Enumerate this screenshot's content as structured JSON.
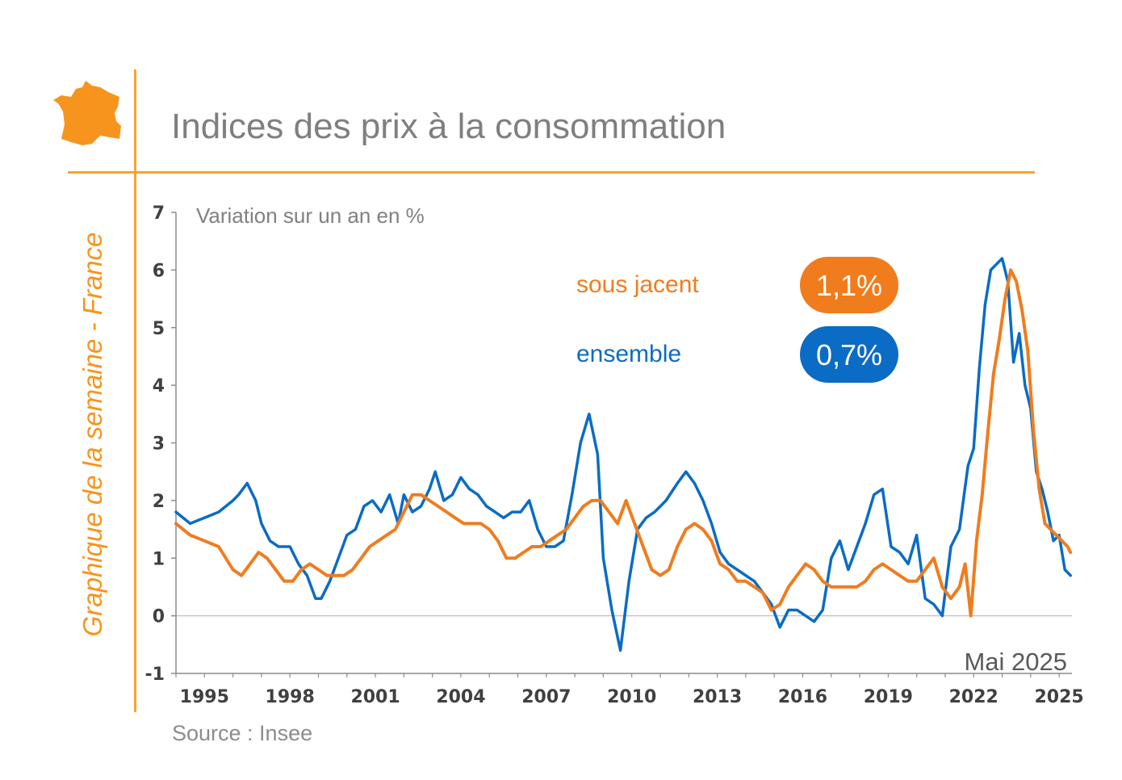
{
  "header": {
    "title": "Indices des prix à la consommation",
    "side_label": "Graphique de la semaine - France"
  },
  "footer": {
    "source": "Source : Insee"
  },
  "chart_data": {
    "type": "line",
    "ylabel": "Variation sur un an en %",
    "ylim": [
      -1,
      7
    ],
    "yticks": [
      -1,
      0,
      1,
      2,
      3,
      4,
      5,
      6,
      7
    ],
    "xlim": [
      1994.0,
      2025.45
    ],
    "xticks": [
      1995,
      1998,
      2001,
      2004,
      2007,
      2010,
      2013,
      2016,
      2019,
      2022,
      2025
    ],
    "annotation": "Mai 2025",
    "colors": {
      "sous_jacent": "#f07c1e",
      "ensemble": "#0a6cc4"
    },
    "series": [
      {
        "name": "ensemble",
        "latest": "0,7%",
        "x": [
          1994.0,
          1994.5,
          1995.0,
          1995.5,
          1996.0,
          1996.2,
          1996.5,
          1996.8,
          1997.0,
          1997.3,
          1997.6,
          1998.0,
          1998.3,
          1998.6,
          1998.9,
          1999.1,
          1999.4,
          1999.7,
          2000.0,
          2000.3,
          2000.6,
          2000.9,
          2001.2,
          2001.5,
          2001.8,
          2002.0,
          2002.3,
          2002.6,
          2002.9,
          2003.1,
          2003.4,
          2003.7,
          2004.0,
          2004.3,
          2004.6,
          2004.9,
          2005.2,
          2005.5,
          2005.8,
          2006.1,
          2006.4,
          2006.7,
          2007.0,
          2007.3,
          2007.6,
          2007.9,
          2008.2,
          2008.5,
          2008.8,
          2009.0,
          2009.3,
          2009.6,
          2009.9,
          2010.2,
          2010.5,
          2010.8,
          2011.2,
          2011.6,
          2011.9,
          2012.2,
          2012.5,
          2012.8,
          2013.1,
          2013.4,
          2013.7,
          2014.0,
          2014.3,
          2014.6,
          2014.9,
          2015.2,
          2015.5,
          2015.8,
          2016.1,
          2016.4,
          2016.7,
          2017.0,
          2017.3,
          2017.6,
          2017.9,
          2018.2,
          2018.5,
          2018.8,
          2019.1,
          2019.4,
          2019.7,
          2020.0,
          2020.3,
          2020.6,
          2020.9,
          2021.2,
          2021.5,
          2021.8,
          2022.0,
          2022.2,
          2022.4,
          2022.6,
          2022.8,
          2023.0,
          2023.2,
          2023.4,
          2023.6,
          2023.8,
          2024.0,
          2024.2,
          2024.4,
          2024.6,
          2024.8,
          2025.0,
          2025.2,
          2025.4
        ],
        "y": [
          1.8,
          1.6,
          1.7,
          1.8,
          2.0,
          2.1,
          2.3,
          2.0,
          1.6,
          1.3,
          1.2,
          1.2,
          0.9,
          0.7,
          0.3,
          0.3,
          0.6,
          1.0,
          1.4,
          1.5,
          1.9,
          2.0,
          1.8,
          2.1,
          1.6,
          2.1,
          1.8,
          1.9,
          2.2,
          2.5,
          2.0,
          2.1,
          2.4,
          2.2,
          2.1,
          1.9,
          1.8,
          1.7,
          1.8,
          1.8,
          2.0,
          1.5,
          1.2,
          1.2,
          1.3,
          2.1,
          3.0,
          3.5,
          2.8,
          1.0,
          0.1,
          -0.6,
          0.6,
          1.5,
          1.7,
          1.8,
          2.0,
          2.3,
          2.5,
          2.3,
          2.0,
          1.6,
          1.1,
          0.9,
          0.8,
          0.7,
          0.6,
          0.4,
          0.2,
          -0.2,
          0.1,
          0.1,
          0.0,
          -0.1,
          0.1,
          1.0,
          1.3,
          0.8,
          1.2,
          1.6,
          2.1,
          2.2,
          1.2,
          1.1,
          0.9,
          1.4,
          0.3,
          0.2,
          0.0,
          1.2,
          1.5,
          2.6,
          2.9,
          4.3,
          5.4,
          6.0,
          6.1,
          6.2,
          5.8,
          4.4,
          4.9,
          4.0,
          3.6,
          2.5,
          2.2,
          1.8,
          1.3,
          1.4,
          0.8,
          0.7
        ]
      },
      {
        "name": "sous jacent",
        "latest": "1,1%",
        "x": [
          1994.0,
          1994.5,
          1995.0,
          1995.5,
          1996.0,
          1996.3,
          1996.6,
          1996.9,
          1997.2,
          1997.5,
          1997.8,
          1998.1,
          1998.4,
          1998.7,
          1999.0,
          1999.3,
          1999.6,
          1999.9,
          2000.2,
          2000.5,
          2000.8,
          2001.1,
          2001.4,
          2001.7,
          2002.0,
          2002.3,
          2002.6,
          2002.9,
          2003.2,
          2003.5,
          2003.8,
          2004.1,
          2004.4,
          2004.7,
          2005.0,
          2005.3,
          2005.6,
          2005.9,
          2006.2,
          2006.5,
          2006.8,
          2007.1,
          2007.4,
          2007.7,
          2008.0,
          2008.3,
          2008.6,
          2008.9,
          2009.2,
          2009.5,
          2009.8,
          2010.1,
          2010.4,
          2010.7,
          2011.0,
          2011.3,
          2011.6,
          2011.9,
          2012.2,
          2012.5,
          2012.8,
          2013.1,
          2013.4,
          2013.7,
          2014.0,
          2014.3,
          2014.6,
          2014.9,
          2015.2,
          2015.5,
          2015.8,
          2016.1,
          2016.4,
          2016.7,
          2017.0,
          2017.3,
          2017.6,
          2017.9,
          2018.2,
          2018.5,
          2018.8,
          2019.1,
          2019.4,
          2019.7,
          2020.0,
          2020.3,
          2020.6,
          2020.9,
          2021.2,
          2021.5,
          2021.7,
          2021.9,
          2022.1,
          2022.3,
          2022.5,
          2022.7,
          2022.9,
          2023.1,
          2023.3,
          2023.5,
          2023.7,
          2023.9,
          2024.1,
          2024.3,
          2024.5,
          2024.7,
          2024.9,
          2025.1,
          2025.3,
          2025.4
        ],
        "y": [
          1.6,
          1.4,
          1.3,
          1.2,
          0.8,
          0.7,
          0.9,
          1.1,
          1.0,
          0.8,
          0.6,
          0.6,
          0.8,
          0.9,
          0.8,
          0.7,
          0.7,
          0.7,
          0.8,
          1.0,
          1.2,
          1.3,
          1.4,
          1.5,
          1.8,
          2.1,
          2.1,
          2.0,
          1.9,
          1.8,
          1.7,
          1.6,
          1.6,
          1.6,
          1.5,
          1.3,
          1.0,
          1.0,
          1.1,
          1.2,
          1.2,
          1.3,
          1.4,
          1.5,
          1.7,
          1.9,
          2.0,
          2.0,
          1.8,
          1.6,
          2.0,
          1.6,
          1.2,
          0.8,
          0.7,
          0.8,
          1.2,
          1.5,
          1.6,
          1.5,
          1.3,
          0.9,
          0.8,
          0.6,
          0.6,
          0.5,
          0.4,
          0.1,
          0.2,
          0.5,
          0.7,
          0.9,
          0.8,
          0.6,
          0.5,
          0.5,
          0.5,
          0.5,
          0.6,
          0.8,
          0.9,
          0.8,
          0.7,
          0.6,
          0.6,
          0.8,
          1.0,
          0.5,
          0.3,
          0.5,
          0.9,
          0.0,
          1.3,
          2.1,
          3.2,
          4.2,
          4.8,
          5.5,
          6.0,
          5.8,
          5.3,
          4.6,
          3.2,
          2.2,
          1.6,
          1.5,
          1.4,
          1.3,
          1.2,
          1.1
        ]
      }
    ]
  }
}
